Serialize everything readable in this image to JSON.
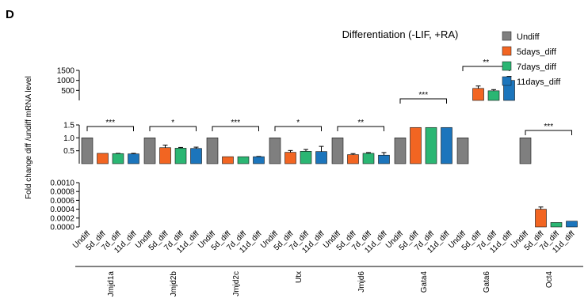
{
  "panel_label": "D",
  "chart_data": {
    "type": "bar",
    "title": "Differentiation (-LIF, +RA)",
    "ylabel": "Fold change diff /undiff mRNA level",
    "y_axis": "broken (three segments)",
    "y_ticks_top": [
      "1500",
      "1000",
      "500"
    ],
    "y_ticks_mid": [
      "1.5",
      "1.0",
      "0.5"
    ],
    "y_ticks_low": [
      "0.0010",
      "0.0008",
      "0.0006",
      "0.0004",
      "0.0002",
      "0.0000"
    ],
    "legend_position": "top-right",
    "legend": [
      {
        "name": "Undiff",
        "color": "#7f7f7f"
      },
      {
        "name": "5days_diff",
        "color": "#f26522"
      },
      {
        "name": "7days_diff",
        "color": "#2bb673"
      },
      {
        "name": "11days_diff",
        "color": "#1c75bc"
      }
    ],
    "bar_labels": [
      "Undiff",
      "5d_diff",
      "7d_diff",
      "11d_diff"
    ],
    "groups": [
      {
        "gene": "Jmjd1a",
        "values": [
          1.0,
          0.4,
          0.39,
          0.38
        ],
        "errors": [
          0,
          0,
          0.01,
          0.02
        ],
        "sig": "***"
      },
      {
        "gene": "Jmjd2b",
        "values": [
          1.0,
          0.62,
          0.6,
          0.59
        ],
        "errors": [
          0,
          0.1,
          0.03,
          0.05
        ],
        "sig": "*"
      },
      {
        "gene": "Jmjd2c",
        "values": [
          1.0,
          0.27,
          0.27,
          0.27
        ],
        "errors": [
          0,
          0,
          0,
          0.01
        ],
        "sig": "***"
      },
      {
        "gene": "Utx",
        "values": [
          1.0,
          0.44,
          0.48,
          0.47
        ],
        "errors": [
          0,
          0.07,
          0.07,
          0.2
        ],
        "sig": "*"
      },
      {
        "gene": "Jmjd6",
        "values": [
          1.0,
          0.35,
          0.4,
          0.33
        ],
        "errors": [
          0,
          0.04,
          0.03,
          0.1
        ],
        "sig": "**"
      },
      {
        "gene": "Gata4",
        "values": [
          1.0,
          1.4,
          1.4,
          1.4
        ],
        "errors": [
          0,
          0,
          0,
          0
        ],
        "sig": "***"
      },
      {
        "gene": "Gata6",
        "values": [
          1.0,
          600,
          480,
          1000
        ],
        "errors": [
          0,
          120,
          60,
          200
        ],
        "sig": "**"
      },
      {
        "gene": "Oct4",
        "values": [
          1.0,
          0.0004,
          0.0001,
          0.00013
        ],
        "errors": [
          0,
          5e-05,
          0,
          0
        ],
        "sig": "***"
      }
    ]
  }
}
